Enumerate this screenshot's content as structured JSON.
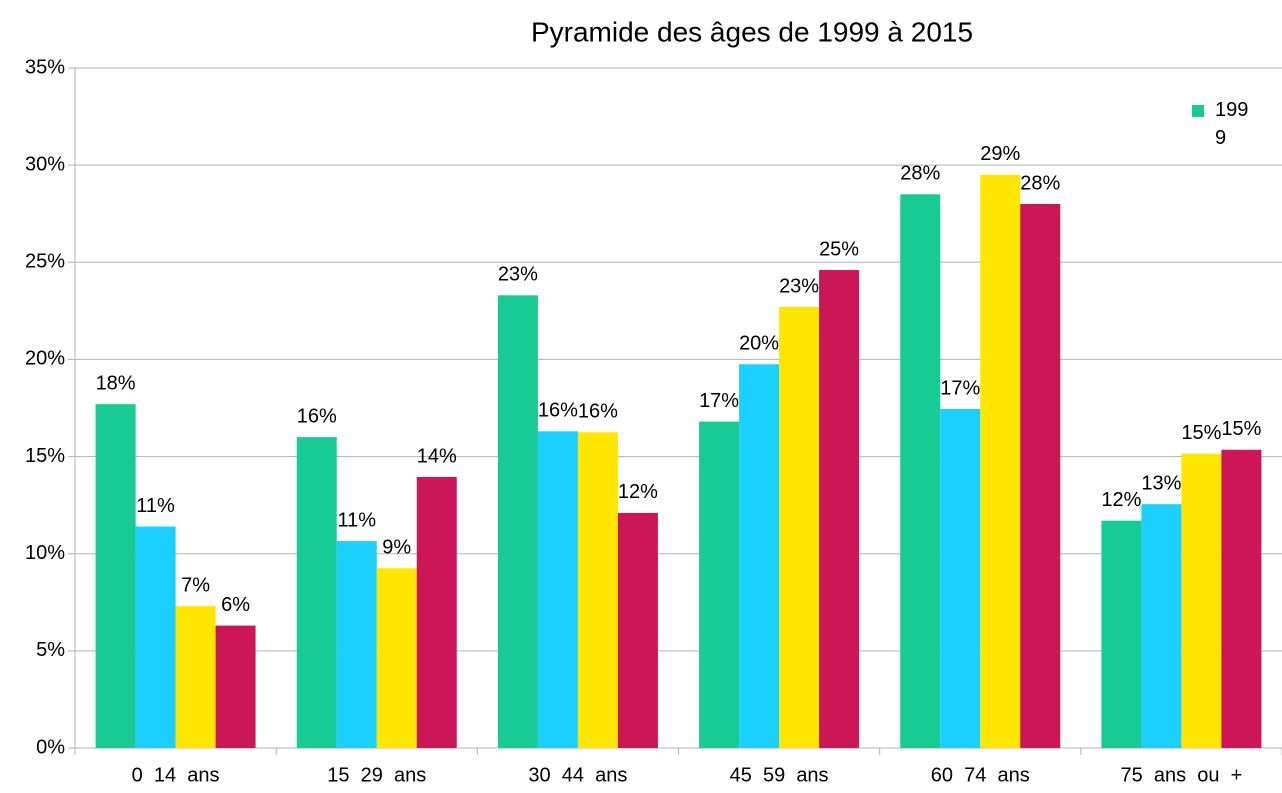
{
  "chart_data": {
    "type": "bar",
    "title": "Pyramide des âges de 1999 à 2015",
    "categories": [
      "0  14  ans",
      "15  29  ans",
      "30  44  ans",
      "45  59  ans",
      "60  74  ans",
      "75  ans  ou  +"
    ],
    "series": [
      {
        "name": "1999",
        "color": "#18cb94",
        "values": [
          17.7,
          16.0,
          23.3,
          16.8,
          28.5,
          11.7
        ],
        "value_labels": [
          "18%",
          "16%",
          "23%",
          "17%",
          "28%",
          "12%"
        ]
      },
      {
        "color": "#1bcfff",
        "values": [
          11.4,
          10.65,
          16.3,
          19.75,
          17.45,
          12.55
        ],
        "value_labels": [
          "11%",
          "11%",
          "16%",
          "20%",
          "17%",
          "13%"
        ]
      },
      {
        "color": "#ffe600",
        "values": [
          7.3,
          9.25,
          16.25,
          22.7,
          29.5,
          15.15
        ],
        "value_labels": [
          "7%",
          "9%",
          "16%",
          "23%",
          "29%",
          "15%"
        ]
      },
      {
        "color": "#cc1756",
        "values": [
          6.3,
          13.95,
          12.1,
          24.6,
          28.0,
          15.35
        ],
        "value_labels": [
          "6%",
          "14%",
          "12%",
          "25%",
          "28%",
          "15%"
        ]
      }
    ],
    "ylim": [
      0,
      35
    ],
    "yticks": [
      {
        "value": 0,
        "label": "0%"
      },
      {
        "value": 5,
        "label": "5%"
      },
      {
        "value": 10,
        "label": "10%"
      },
      {
        "value": 15,
        "label": "15%"
      },
      {
        "value": 20,
        "label": "20%"
      },
      {
        "value": 25,
        "label": "25%"
      },
      {
        "value": 30,
        "label": "30%"
      },
      {
        "value": 35,
        "label": "35%"
      }
    ],
    "grid": true,
    "legend": "top-right"
  }
}
